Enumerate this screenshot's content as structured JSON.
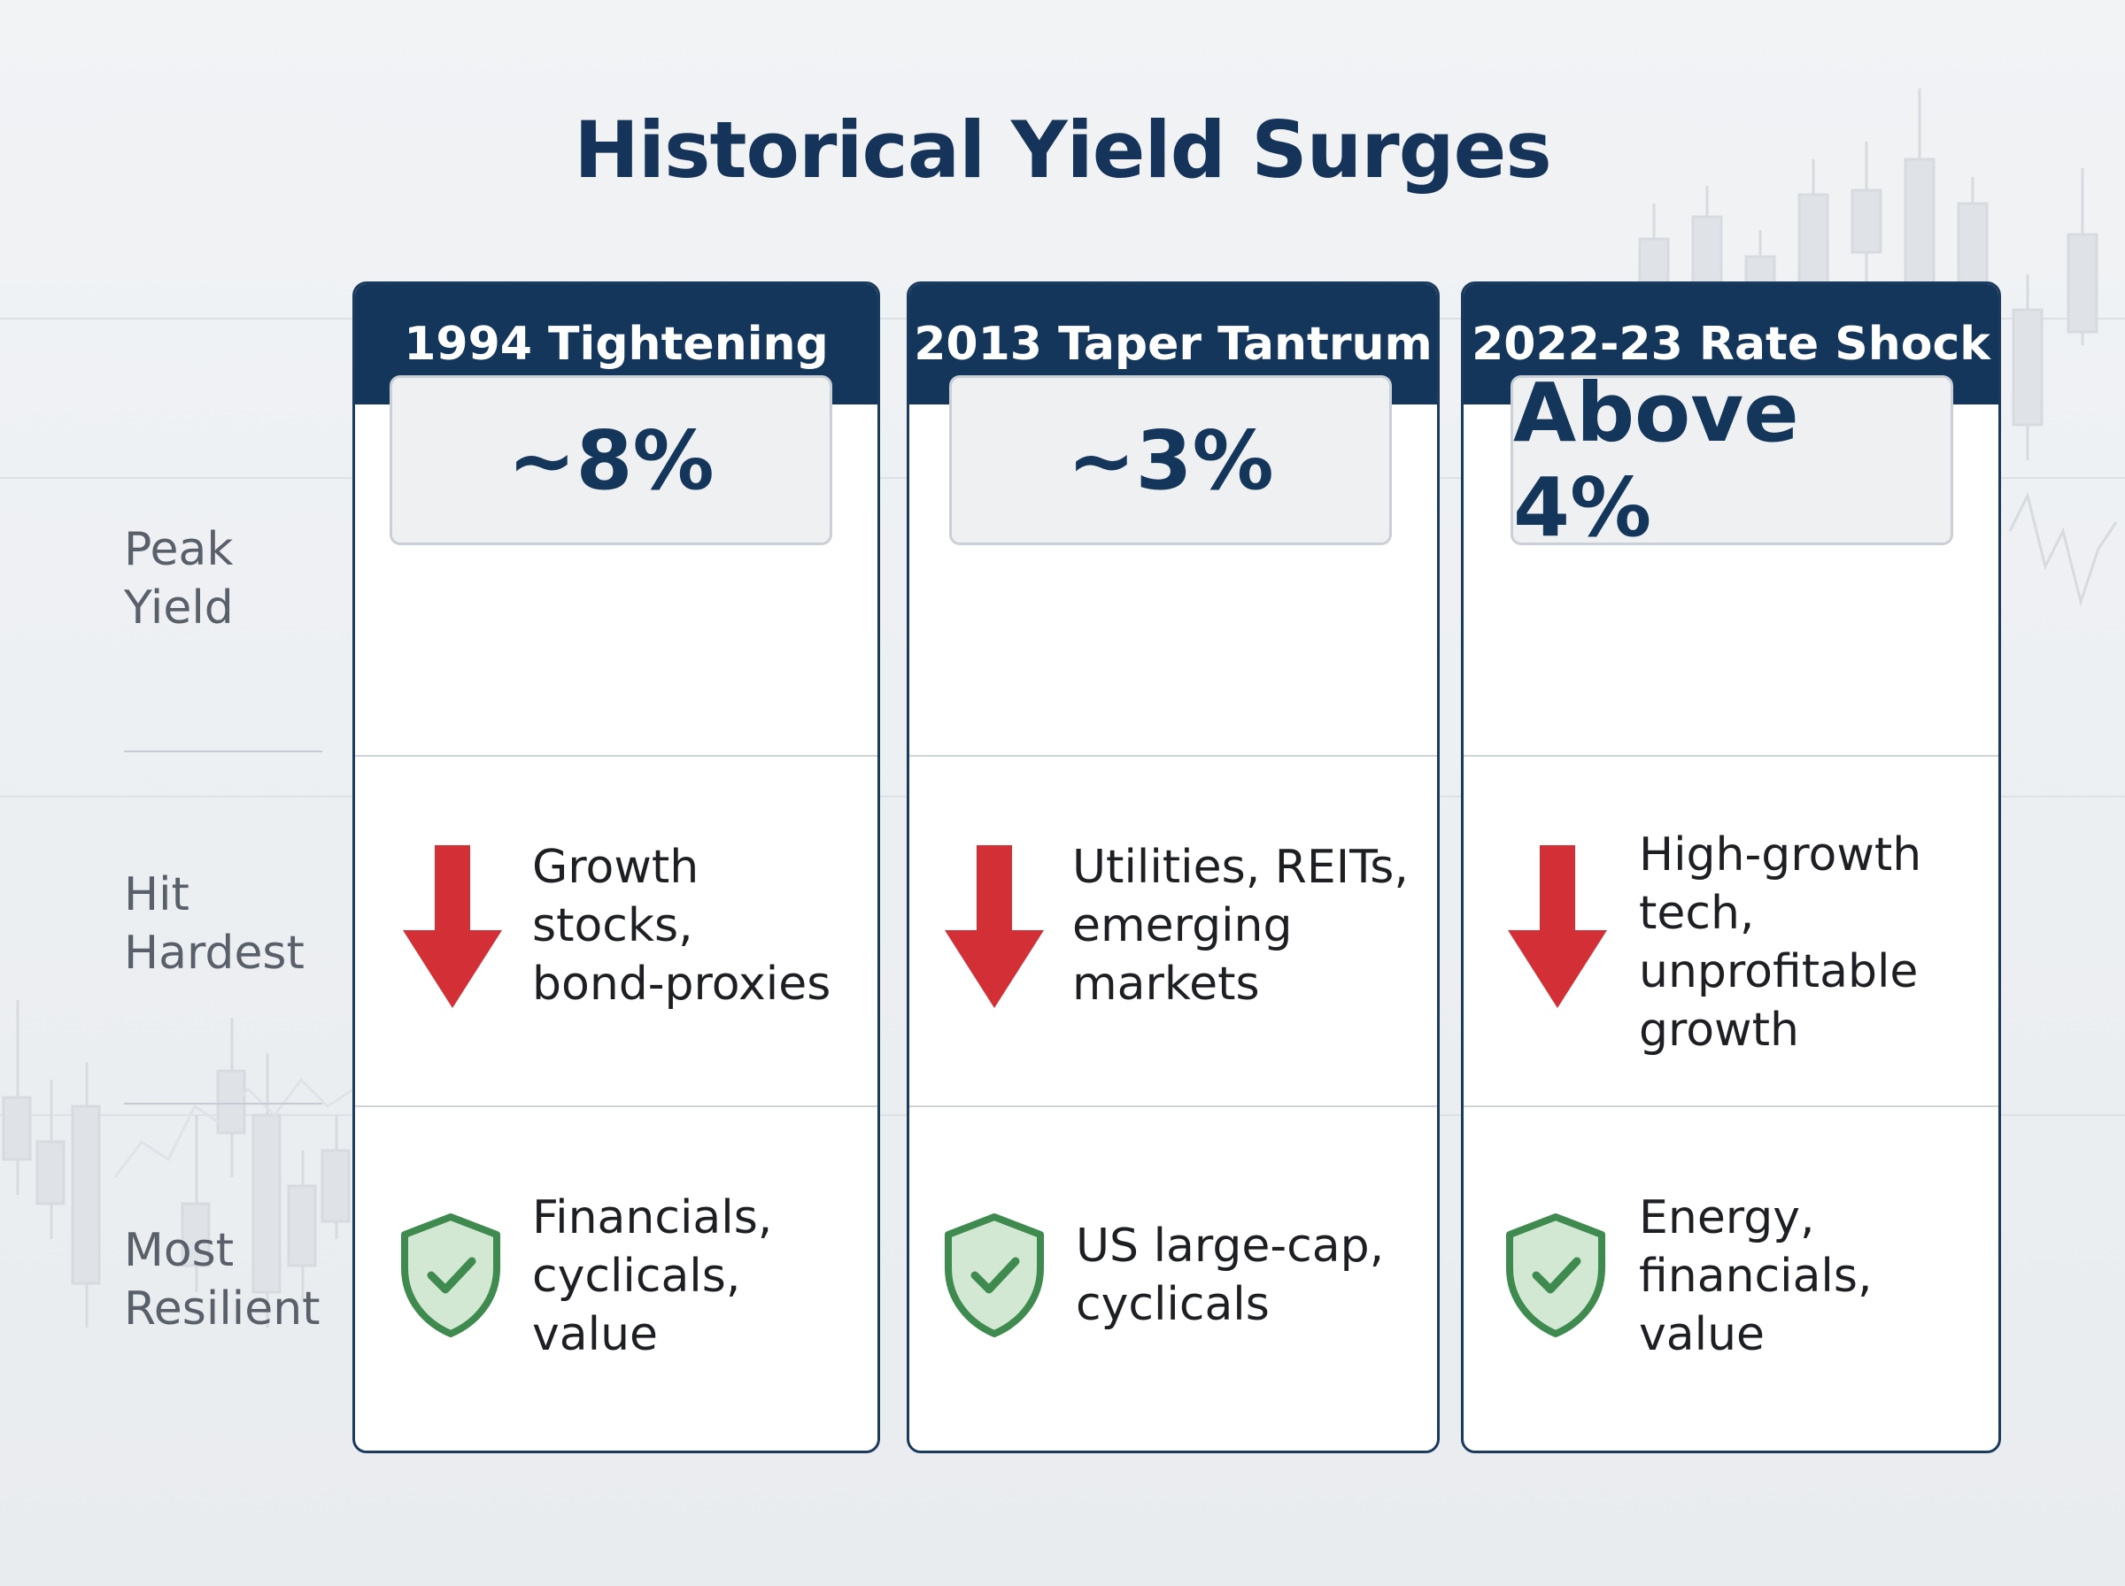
{
  "title": "Historical Yield Surges",
  "row_labels": {
    "peak": [
      "Peak",
      "Yield"
    ],
    "hit": [
      "Hit",
      "Hardest"
    ],
    "resilient": [
      "Most",
      "Resilient"
    ]
  },
  "columns": [
    {
      "header": "1994 Tightening",
      "peak_yield": "~8%",
      "hit_hardest": [
        "Growth",
        "stocks,",
        "bond-proxies"
      ],
      "most_resilient": [
        "Financials,",
        "cyclicals,",
        "value"
      ]
    },
    {
      "header": "2013 Taper Tantrum",
      "peak_yield": "~3%",
      "hit_hardest": [
        "Utilities, REITs,",
        "emerging",
        "markets"
      ],
      "most_resilient": [
        "US large-cap,",
        "cyclicals"
      ]
    },
    {
      "header": "2022-23 Rate Shock",
      "peak_yield": "Above 4%",
      "hit_hardest": [
        "High-growth",
        "tech,",
        "unprofitable",
        "growth"
      ],
      "most_resilient": [
        "Energy,",
        "financials,",
        "value"
      ]
    }
  ],
  "icons": {
    "hit": "down-arrow-icon",
    "resilient": "shield-check-icon"
  },
  "colors": {
    "header_bg": "#15365b",
    "title": "#163459",
    "down_arrow": "#d32f37",
    "shield_stroke": "#3f8a4e",
    "shield_fill": "#d3e8d3"
  }
}
